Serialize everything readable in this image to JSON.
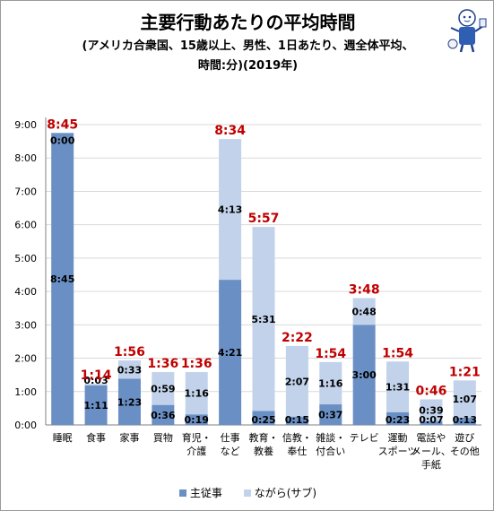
{
  "header": {
    "title": "主要行動あたりの平均時間",
    "subtitle_line1": "(アメリカ合衆国、15歳以上、男性、1日あたり、週全体平均、",
    "subtitle_line2": "時間:分)(2019年)"
  },
  "mascot": {
    "icon": "mascot-character-icon"
  },
  "colors": {
    "primary": "#6a8fc4",
    "secondary": "#c1d2ea",
    "total_label": "#c00000",
    "grid": "#d9d9d9",
    "axis": "#808080"
  },
  "chart_data": {
    "type": "bar",
    "stacked": true,
    "title": "主要行動あたりの平均時間",
    "ylim": [
      0,
      9
    ],
    "y_ticks": [
      "0:00",
      "1:00",
      "2:00",
      "3:00",
      "4:00",
      "5:00",
      "6:00",
      "7:00",
      "8:00",
      "9:00"
    ],
    "categories": [
      [
        "睡眠"
      ],
      [
        "食事"
      ],
      [
        "家事"
      ],
      [
        "買物"
      ],
      [
        "育児・",
        "介護"
      ],
      [
        "仕事",
        "など"
      ],
      [
        "教育・",
        "教養"
      ],
      [
        "信教・",
        "奉仕"
      ],
      [
        "雑談・",
        "付合い"
      ],
      [
        "テレビ"
      ],
      [
        "運動",
        "スポーツ"
      ],
      [
        "電話や",
        "メール、",
        "手紙"
      ],
      [
        "遊び",
        "その他"
      ]
    ],
    "series": [
      {
        "name": "主従事",
        "values": [
          8.75,
          1.1833,
          1.3833,
          0.6,
          0.3167,
          4.35,
          0.4167,
          0.25,
          0.6167,
          3.0,
          0.3833,
          0.1167,
          0.2167
        ],
        "labels": [
          "8:45",
          "1:11",
          "1:23",
          "0:36",
          "0:19",
          "4:21",
          "0:25",
          "0:15",
          "0:37",
          "3:00",
          "0:23",
          "0:07",
          "0:13"
        ]
      },
      {
        "name": "ながら(サブ)",
        "values": [
          0.0,
          0.05,
          0.55,
          0.9833,
          1.2667,
          4.2167,
          5.5167,
          2.1167,
          1.2667,
          0.8,
          1.5167,
          0.65,
          1.1167
        ],
        "labels": [
          "0:00",
          "0:03",
          "0:33",
          "0:59",
          "1:16",
          "4:13",
          "5:31",
          "2:07",
          "1:16",
          "0:48",
          "1:31",
          "0:39",
          "1:07"
        ]
      }
    ],
    "totals": [
      "8:45",
      "1:14",
      "1:56",
      "1:36",
      "1:36",
      "8:34",
      "5:57",
      "2:22",
      "1:54",
      "3:48",
      "1:54",
      "0:46",
      "1:21"
    ],
    "legend_position": "bottom",
    "grid": true
  }
}
